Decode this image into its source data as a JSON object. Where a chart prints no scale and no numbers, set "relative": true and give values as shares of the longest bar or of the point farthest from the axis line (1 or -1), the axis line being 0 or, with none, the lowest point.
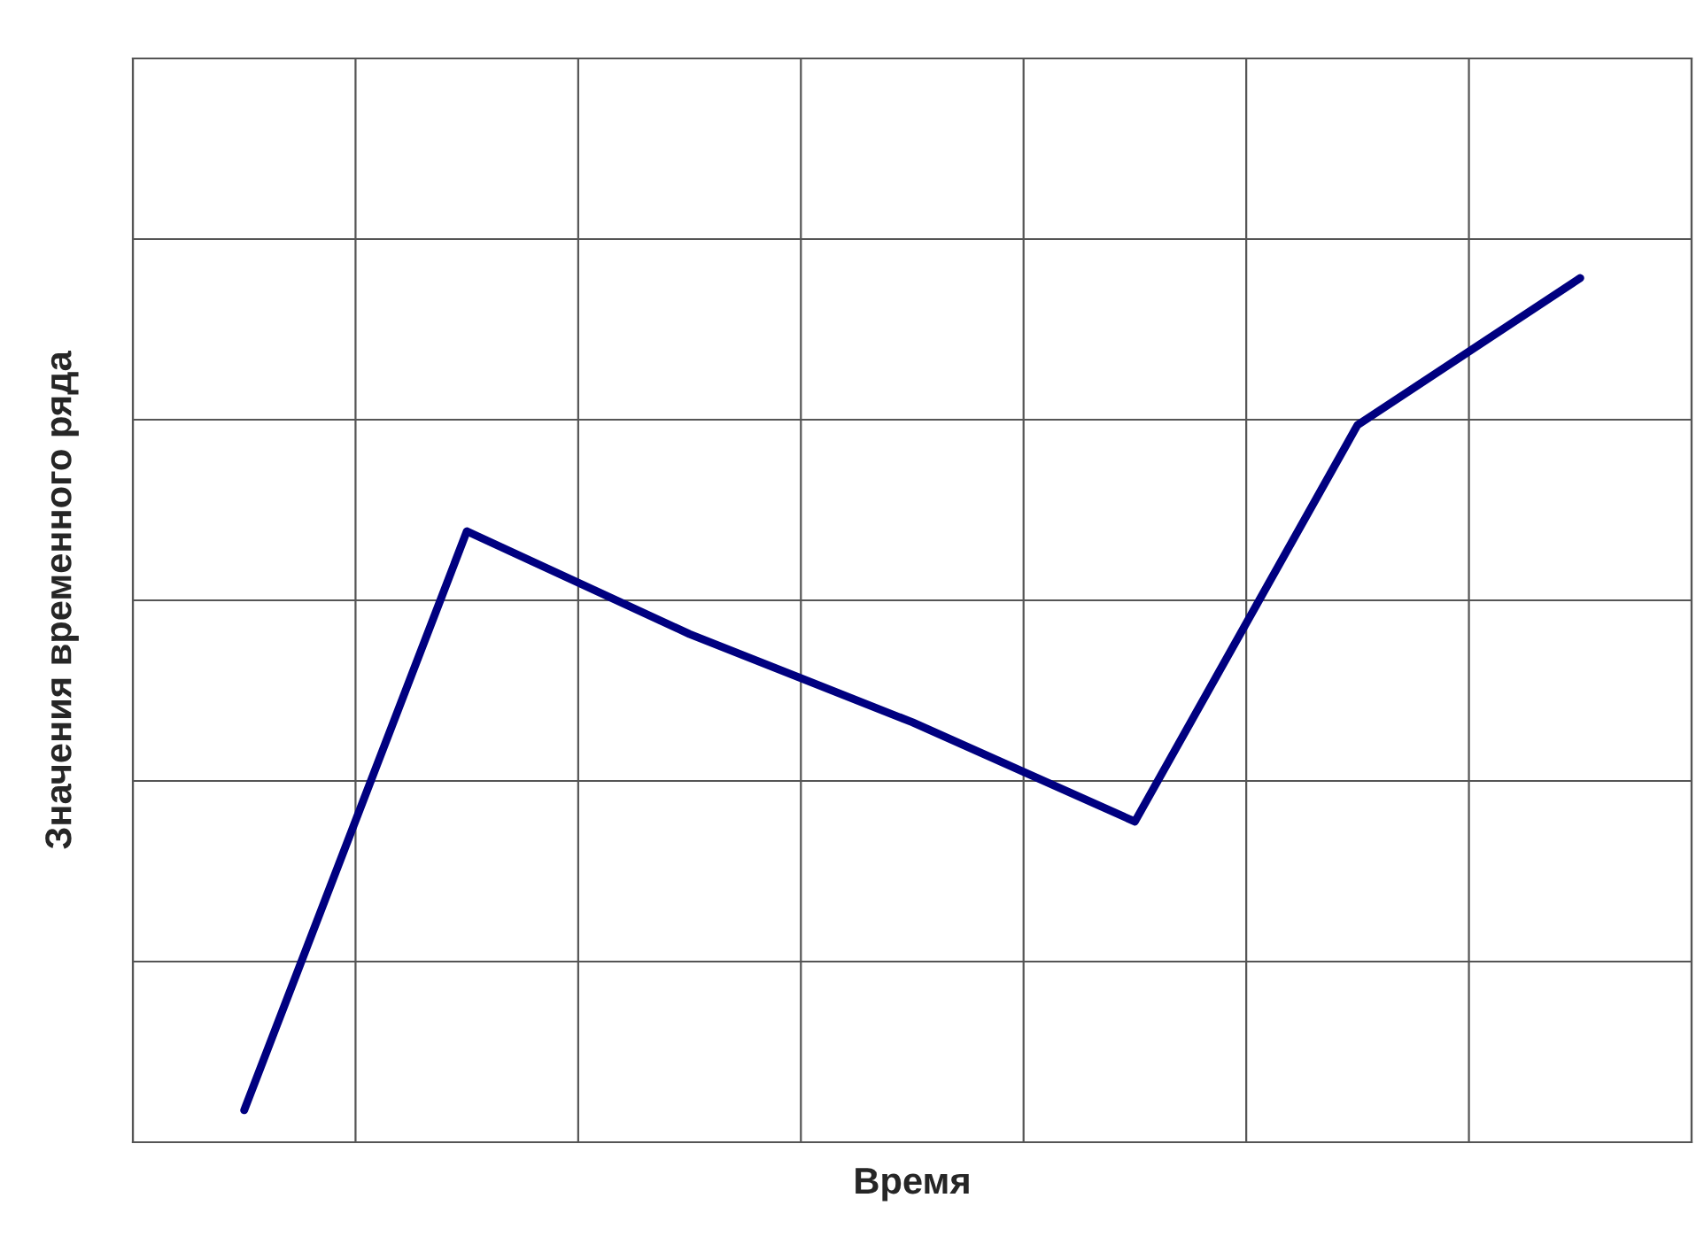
{
  "chart_data": {
    "type": "line",
    "xlabel": "Время",
    "ylabel": "Значения временного ряда",
    "categories": [
      null,
      null,
      null,
      null,
      null,
      null,
      null
    ],
    "relative": true,
    "grid": true,
    "marker": "none",
    "line_style": "solid",
    "tick_labels": false,
    "series": [
      {
        "color": "#000080",
        "values": [
          0.037,
          0.707,
          0.588,
          0.486,
          0.371,
          0.83,
          1.0
        ]
      }
    ]
  }
}
